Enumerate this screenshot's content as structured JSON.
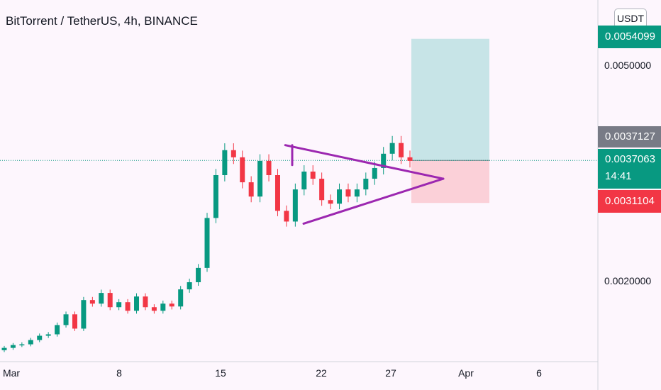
{
  "header": {
    "title": "BitTorrent / TetherUS, 4h, BINANCE"
  },
  "scale_button": {
    "label": "USDT"
  },
  "badges": {
    "target": {
      "value": "0.0054099",
      "color": "#089981"
    },
    "high": {
      "value": "0.0037127",
      "color": "#787b86"
    },
    "last": {
      "value": "0.0037063",
      "countdown": "14:41",
      "color": "#089981"
    },
    "stop": {
      "value": "0.0031104",
      "color": "#f23645"
    }
  },
  "colors": {
    "up": "#089981",
    "down": "#f23645",
    "pattern": "#9c27b0",
    "profit_zone": "#c7e4e7",
    "loss_zone": "#fbd0d8"
  },
  "chart_data": {
    "type": "candlestick",
    "title": "BitTorrent / TetherUS, 4h, BINANCE",
    "x_tick_labels": [
      "Mar",
      "8",
      "15",
      "22",
      "27",
      "Apr",
      "6"
    ],
    "y_tick_labels": [
      "0.0050000",
      "0.0020000"
    ],
    "ylim": [
      0.0009,
      0.006
    ],
    "price_series_close": [
      0.00108,
      0.00112,
      0.00113,
      0.00119,
      0.00125,
      0.00127,
      0.0014,
      0.00155,
      0.00135,
      0.00175,
      0.0017,
      0.00185,
      0.00165,
      0.00172,
      0.0016,
      0.0018,
      0.00165,
      0.0016,
      0.0017,
      0.00166,
      0.0019,
      0.002,
      0.0022,
      0.0029,
      0.0035,
      0.00385,
      0.00375,
      0.0034,
      0.0032,
      0.0037,
      0.0035,
      0.003,
      0.00285,
      0.0033,
      0.00355,
      0.00345,
      0.00315,
      0.0031,
      0.0033,
      0.0032,
      0.0033,
      0.00345,
      0.0036,
      0.0038,
      0.00395,
      0.00375,
      0.0037
    ],
    "triangle_pattern": {
      "upper_line": [
        [
          "Mar 20",
          0.00392
        ],
        [
          "Mar 30",
          0.00345
        ]
      ],
      "lower_line": [
        [
          "Mar 21",
          0.00282
        ],
        [
          "Mar 30",
          0.00345
        ]
      ]
    },
    "position": {
      "entry": 0.0037063,
      "target": 0.0054099,
      "stop": 0.0031104
    },
    "last_price": 0.0037063,
    "grid": false
  }
}
